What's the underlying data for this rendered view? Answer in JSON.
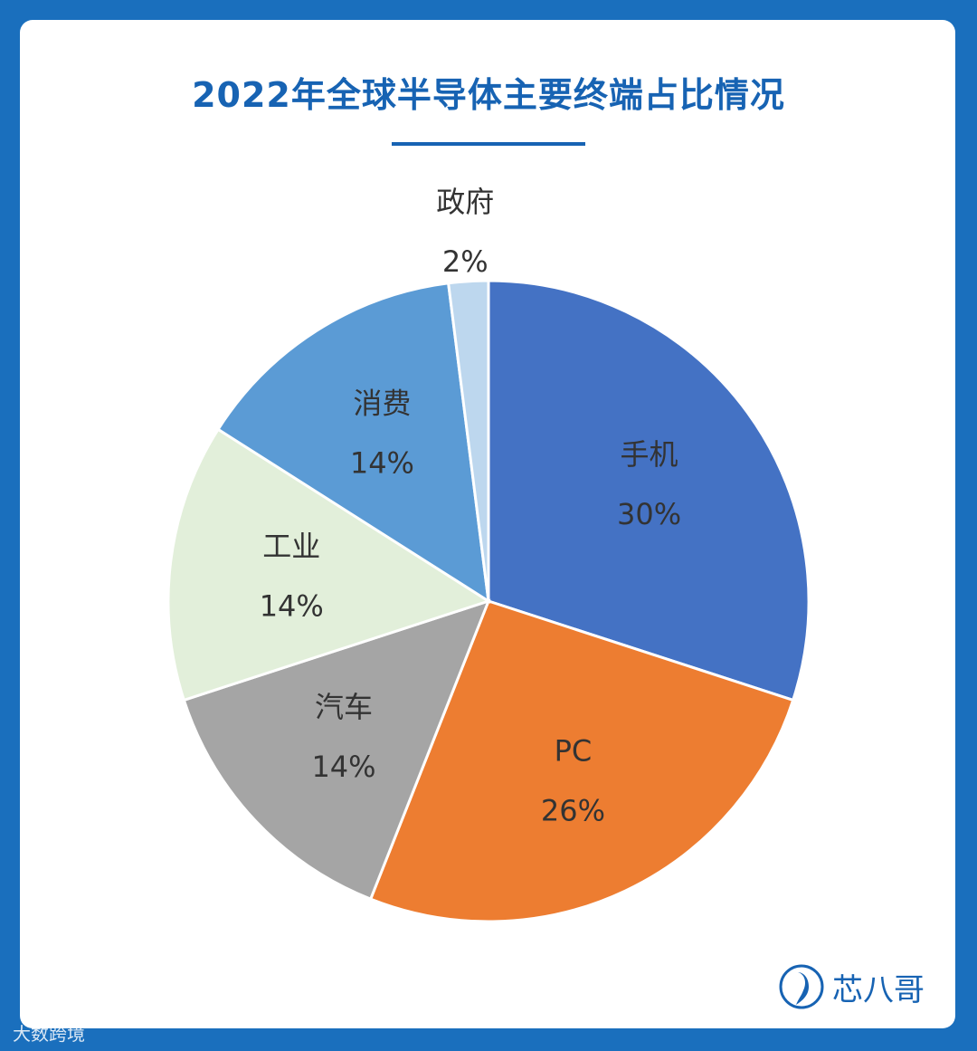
{
  "title": "2022年全球半导体主要终端占比情况",
  "brand": {
    "name": "芯八哥",
    "icon": "bird-logo-icon"
  },
  "footer_watermark": "大数跨境",
  "chart_data": {
    "type": "pie",
    "title": "2022年全球半导体主要终端占比情况",
    "slices": [
      {
        "label": "手机",
        "value": 30,
        "display": "30%",
        "color": "#4472c4"
      },
      {
        "label": "PC",
        "value": 26,
        "display": "26%",
        "color": "#ed7d31"
      },
      {
        "label": "汽车",
        "value": 14,
        "display": "14%",
        "color": "#a5a5a5"
      },
      {
        "label": "工业",
        "value": 14,
        "display": "14%",
        "color": "#e2efda"
      },
      {
        "label": "消费",
        "value": 14,
        "display": "14%",
        "color": "#5b9bd5"
      },
      {
        "label": "政府",
        "value": 2,
        "display": "2%",
        "color": "#bdd7ee"
      }
    ],
    "start": "12 o'clock",
    "direction": "clockwise"
  },
  "colors": {
    "title": "#1763b3",
    "background": "#1a6fbd"
  }
}
